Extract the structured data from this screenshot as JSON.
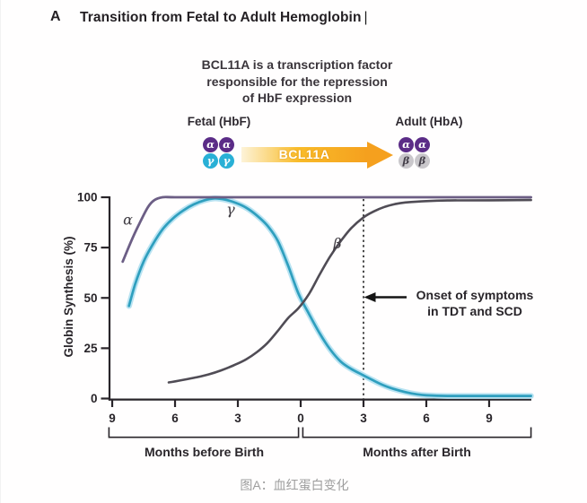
{
  "panel_label": "A",
  "title": "Transition from Fetal to Adult Hemoglobin",
  "title_cursor": "|",
  "annotation": {
    "line1": "BCL11A is a transcription factor",
    "line2": "responsible for the repression",
    "line3": "of HbF expression"
  },
  "diagram": {
    "fetal": {
      "label": "Fetal (HbF)",
      "subunits_top": [
        "α",
        "α"
      ],
      "subunits_bottom": [
        "γ",
        "γ"
      ]
    },
    "adult": {
      "label": "Adult (HbA)",
      "subunits_top": [
        "α",
        "α"
      ],
      "subunits_bottom": [
        "β",
        "β"
      ]
    },
    "arrow_label": "BCL11A",
    "colors": {
      "alpha_circle": "#5b2c87",
      "gamma_circle": "#29b0d6",
      "beta_circle": "#c9c7cb",
      "arrow_orange": "#f5a01e",
      "arrow_fade": "#fdf3d8"
    }
  },
  "chart_data": {
    "type": "line",
    "title": "",
    "ylabel": "Globin Synthesis (%)",
    "xlabel_left": "Months before Birth",
    "xlabel_right": "Months after Birth",
    "xlim": [
      -9.2,
      11
    ],
    "ylim": [
      0,
      100
    ],
    "grid": false,
    "x_ticks": [
      {
        "month": -9,
        "label": "9"
      },
      {
        "month": -6,
        "label": "6"
      },
      {
        "month": -3,
        "label": "3"
      },
      {
        "month": 0,
        "label": "0"
      },
      {
        "month": 3,
        "label": "3"
      },
      {
        "month": 6,
        "label": "6"
      },
      {
        "month": 9,
        "label": "9"
      }
    ],
    "y_ticks": [
      {
        "value": 0,
        "label": "0"
      },
      {
        "value": 25,
        "label": "25"
      },
      {
        "value": 50,
        "label": "50"
      },
      {
        "value": 75,
        "label": "75"
      },
      {
        "value": 100,
        "label": "100"
      }
    ],
    "series": [
      {
        "name": "alpha",
        "label": "α",
        "color": "#6c5e85",
        "width": 2.8,
        "points": [
          [
            -8.5,
            68
          ],
          [
            -8.1,
            78
          ],
          [
            -7.7,
            87
          ],
          [
            -7.3,
            95
          ],
          [
            -7.0,
            98.5
          ],
          [
            -6.6,
            100
          ],
          [
            -6.0,
            100
          ],
          [
            -4,
            100
          ],
          [
            -2,
            100
          ],
          [
            0,
            100
          ],
          [
            2,
            100
          ],
          [
            4,
            100
          ],
          [
            6,
            100
          ],
          [
            8,
            100
          ],
          [
            11,
            100
          ]
        ]
      },
      {
        "name": "gamma",
        "label": "γ",
        "color": "#2f9fbe",
        "halo": "#b9e3f2",
        "width": 2.7,
        "points": [
          [
            -8.2,
            46
          ],
          [
            -7.9,
            57
          ],
          [
            -7.5,
            68
          ],
          [
            -7.1,
            76
          ],
          [
            -6.6,
            84
          ],
          [
            -6.1,
            89.5
          ],
          [
            -5.6,
            93.5
          ],
          [
            -5.1,
            96.5
          ],
          [
            -4.6,
            98.5
          ],
          [
            -4.1,
            99.4
          ],
          [
            -3.6,
            98.8
          ],
          [
            -3.1,
            97.2
          ],
          [
            -2.6,
            94.8
          ],
          [
            -2.1,
            91
          ],
          [
            -1.6,
            86
          ],
          [
            -1.1,
            78.5
          ],
          [
            -0.6,
            66
          ],
          [
            -0.1,
            52
          ],
          [
            0.4,
            42
          ],
          [
            0.9,
            32.5
          ],
          [
            1.4,
            24.5
          ],
          [
            1.9,
            18.5
          ],
          [
            2.4,
            14.8
          ],
          [
            3.0,
            11.5
          ],
          [
            3.5,
            8.8
          ],
          [
            4.0,
            6.4
          ],
          [
            4.5,
            4.6
          ],
          [
            5.0,
            3.2
          ],
          [
            5.5,
            2.2
          ],
          [
            6.0,
            1.6
          ],
          [
            7.0,
            1.3
          ],
          [
            9.0,
            1.3
          ],
          [
            11,
            1.3
          ]
        ]
      },
      {
        "name": "beta",
        "label": "β",
        "color": "#504c55",
        "width": 2.6,
        "points": [
          [
            -6.3,
            8
          ],
          [
            -5.6,
            9.3
          ],
          [
            -5.0,
            10.5
          ],
          [
            -4.4,
            12
          ],
          [
            -3.8,
            14
          ],
          [
            -3.2,
            16.5
          ],
          [
            -2.6,
            19.5
          ],
          [
            -2.1,
            23
          ],
          [
            -1.6,
            27.5
          ],
          [
            -1.1,
            33.5
          ],
          [
            -0.6,
            40
          ],
          [
            -0.1,
            45
          ],
          [
            0.4,
            52
          ],
          [
            0.9,
            61.5
          ],
          [
            1.4,
            70.5
          ],
          [
            1.9,
            78
          ],
          [
            2.4,
            84.5
          ],
          [
            3.0,
            90
          ],
          [
            3.5,
            93
          ],
          [
            4.0,
            95.2
          ],
          [
            4.5,
            96.6
          ],
          [
            5.0,
            97.4
          ],
          [
            6.0,
            98.1
          ],
          [
            7.0,
            98.4
          ],
          [
            9.0,
            98.5
          ],
          [
            11,
            98.6
          ]
        ]
      }
    ],
    "dotted_line_month": 3,
    "annotation": {
      "line1": "Onset of symptoms",
      "line2": "in TDT and SCD"
    }
  },
  "caption": "图A：血红蛋白变化"
}
